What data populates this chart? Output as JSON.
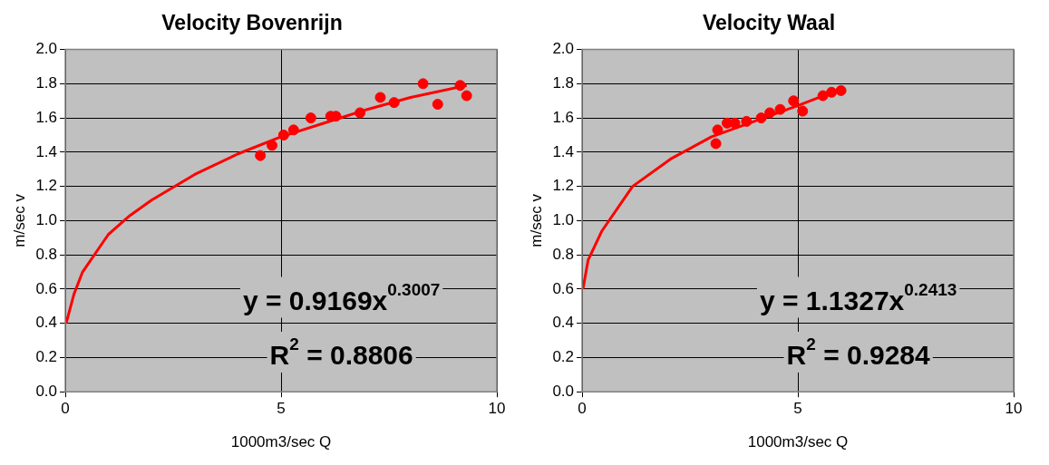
{
  "chart_data": [
    {
      "type": "scatter",
      "title": "Velocity Bovenrijn",
      "xlabel": "1000m3/sec Q",
      "ylabel": "m/sec v",
      "xlim": [
        0,
        10
      ],
      "xticks": [
        0,
        5,
        10
      ],
      "ylim": [
        0,
        2
      ],
      "yticks": [
        {
          "value": 0,
          "label": "0.0"
        },
        0.2,
        0.4,
        0.6,
        0.8,
        {
          "value": 1,
          "label": "1.0"
        },
        1.2,
        1.4,
        1.6,
        1.8,
        {
          "value": 2,
          "label": "2.0"
        }
      ],
      "grid": true,
      "annotations": [
        "y = 0.9169x$^{0.3007}$",
        "R$^{2}$ = 0.8806"
      ],
      "series": [
        {
          "type": "scatter",
          "marker": "circle",
          "color": "#ff0000",
          "x": [
            4.52,
            4.79,
            5.06,
            5.29,
            5.69,
            6.15,
            6.27,
            6.83,
            7.3,
            7.62,
            8.29,
            8.63,
            9.15,
            9.3
          ],
          "values": [
            1.38,
            1.44,
            1.5,
            1.53,
            1.6,
            1.61,
            1.61,
            1.63,
            1.72,
            1.69,
            1.8,
            1.68,
            1.79,
            1.73
          ]
        },
        {
          "type": "line",
          "marker": "none",
          "color": "#ff0000",
          "x": [
            0.02,
            0.2,
            0.4,
            0.7,
            1,
            1.5,
            2,
            3,
            4,
            5,
            6,
            7,
            8,
            9.3
          ],
          "values": [
            0.4,
            0.57,
            0.7,
            0.81,
            0.92,
            1.03,
            1.12,
            1.27,
            1.39,
            1.49,
            1.57,
            1.65,
            1.72,
            1.79
          ]
        }
      ]
    },
    {
      "type": "scatter",
      "title": "Velocity Waal",
      "xlabel": "1000m3/sec Q",
      "ylabel": "m/sec v",
      "xlim": [
        0,
        10
      ],
      "xticks": [
        0,
        5,
        10
      ],
      "ylim": [
        0,
        2
      ],
      "yticks": [
        {
          "value": 0,
          "label": "0.0"
        },
        0.2,
        0.4,
        0.6,
        0.8,
        {
          "value": 1,
          "label": "1.0"
        },
        1.2,
        1.4,
        1.6,
        1.8,
        {
          "value": 2,
          "label": "2.0"
        }
      ],
      "grid": true,
      "annotations": [
        "y = 1.1327x$^{0.2413}$",
        "R$^{2}$ = 0.9284"
      ],
      "series": [
        {
          "type": "scatter",
          "marker": "circle",
          "color": "#ff0000",
          "x": [
            3.1,
            3.14,
            3.36,
            3.54,
            3.81,
            4.15,
            4.35,
            4.59,
            4.9,
            5.11,
            5.58,
            5.78,
            6.0
          ],
          "values": [
            1.45,
            1.53,
            1.57,
            1.57,
            1.58,
            1.6,
            1.63,
            1.65,
            1.7,
            1.64,
            1.73,
            1.75,
            1.76
          ]
        },
        {
          "type": "line",
          "marker": "none",
          "color": "#ff0000",
          "x": [
            0.02,
            0.14,
            0.46,
            1.17,
            2.05,
            3.0,
            4.98,
            6.0
          ],
          "values": [
            0.6,
            0.77,
            0.94,
            1.2,
            1.36,
            1.49,
            1.67,
            1.77
          ]
        }
      ]
    }
  ]
}
